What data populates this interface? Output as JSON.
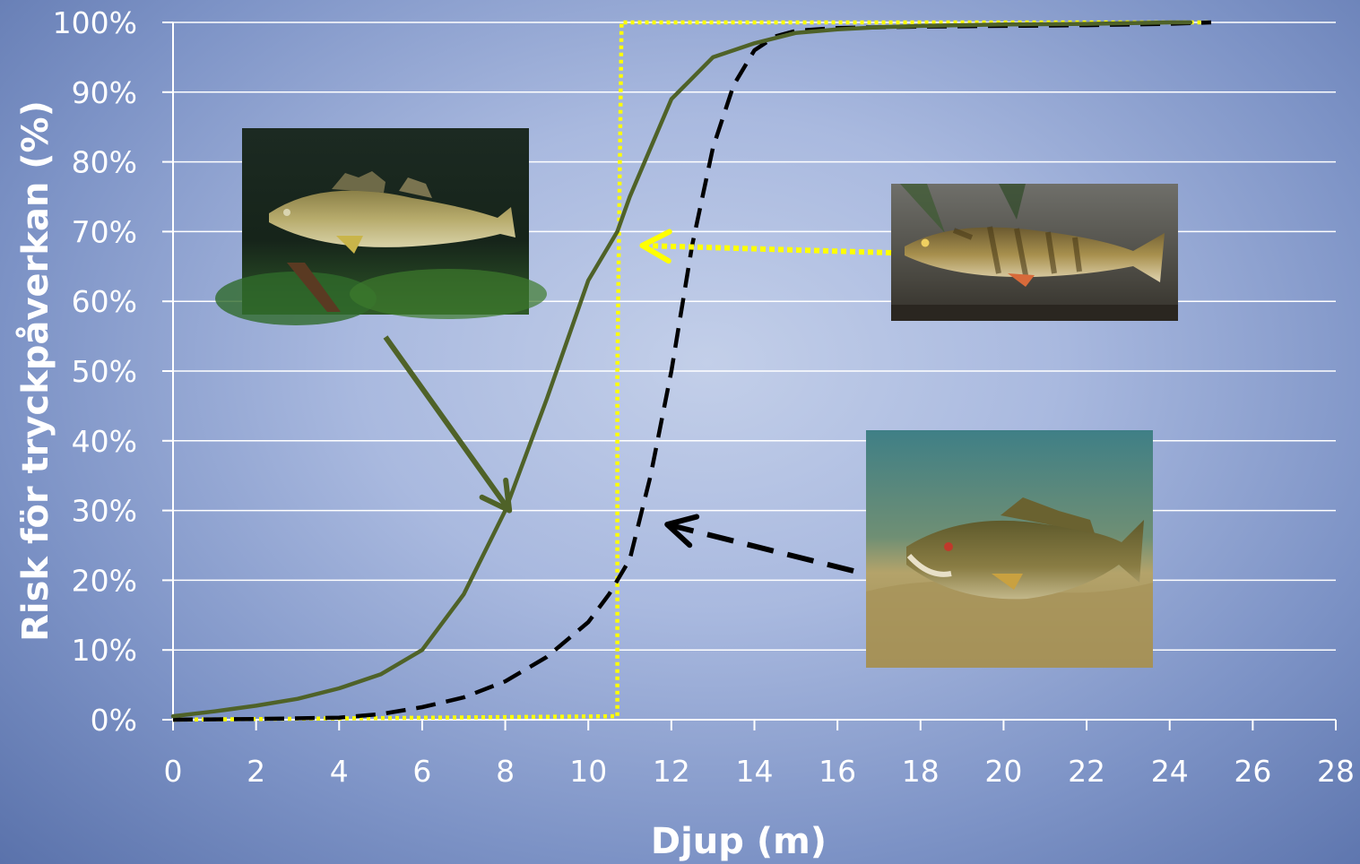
{
  "chart_data": {
    "type": "line",
    "xlabel": "Djup (m)",
    "ylabel": "Risk för tryckpåverkan (%)",
    "xlim": [
      0,
      28
    ],
    "ylim": [
      0,
      100
    ],
    "x_ticks": [
      "0",
      "2",
      "4",
      "6",
      "8",
      "10",
      "12",
      "14",
      "16",
      "18",
      "20",
      "22",
      "24",
      "26",
      "28"
    ],
    "y_ticks": [
      "0%",
      "10%",
      "20%",
      "30%",
      "40%",
      "50%",
      "60%",
      "70%",
      "80%",
      "90%",
      "100%"
    ],
    "grid": "horizontal",
    "series": [
      {
        "style": "solid",
        "color": "#4f6228",
        "x": [
          0,
          1,
          2,
          3,
          4,
          5,
          6,
          7,
          8,
          9,
          10,
          10.7,
          11,
          12,
          13,
          14,
          15,
          16,
          17,
          18,
          20,
          22,
          24,
          24.5
        ],
        "y": [
          0.5,
          1.2,
          2,
          3,
          4.5,
          6.5,
          10,
          18,
          30,
          46,
          63,
          70,
          75,
          89,
          95,
          97,
          98.5,
          99,
          99.3,
          99.5,
          99.7,
          99.8,
          100,
          100
        ]
      },
      {
        "style": "dashed",
        "color": "#000000",
        "x": [
          0,
          2,
          4,
          5,
          6,
          7,
          8,
          9,
          10,
          10.5,
          11,
          11.5,
          12,
          12.5,
          13,
          13.5,
          14,
          14.5,
          15,
          16,
          18,
          20,
          22,
          24,
          25
        ],
        "y": [
          0,
          0.1,
          0.3,
          0.8,
          1.8,
          3.2,
          5.5,
          9,
          14,
          18,
          23,
          35,
          50,
          68,
          82,
          91,
          96,
          98,
          98.8,
          99.2,
          99.4,
          99.5,
          99.6,
          99.8,
          100
        ]
      },
      {
        "style": "dotted",
        "color": "#ffff00",
        "x": [
          0,
          10.7,
          10.7,
          10.8,
          25
        ],
        "y": [
          0,
          0.5,
          50,
          100,
          100
        ]
      }
    ],
    "annotations": [
      {
        "type": "arrow",
        "style": "solid",
        "color": "#4f6228",
        "points_to": [
          8.1,
          30
        ],
        "photo": "pike-perch-photo"
      },
      {
        "type": "arrow",
        "style": "dotted",
        "color": "#ffff00",
        "points_to": [
          11.3,
          68
        ],
        "photo": "perch-photo"
      },
      {
        "type": "arrow",
        "style": "dashed",
        "color": "#000000",
        "points_to": [
          11.9,
          28
        ],
        "photo": "smallmouth-bass-photo"
      }
    ]
  }
}
